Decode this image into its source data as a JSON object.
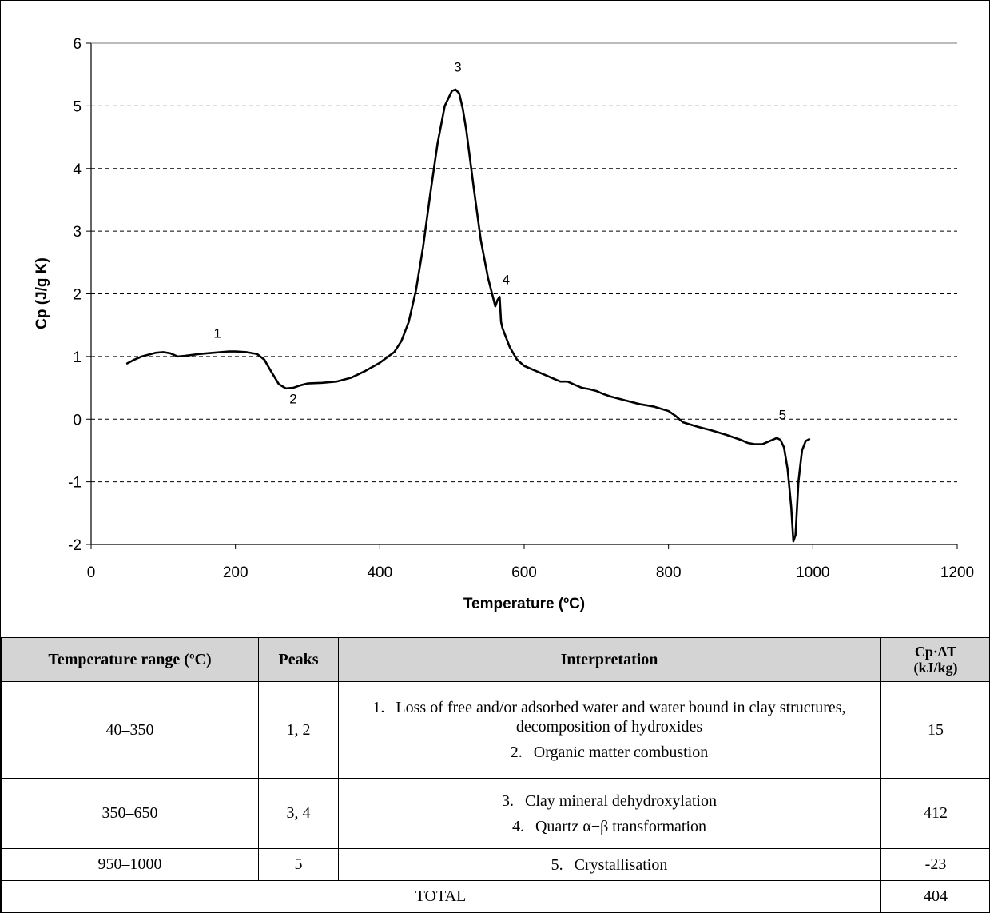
{
  "chart_data": {
    "type": "line",
    "xlabel": "Temperature (ºC)",
    "ylabel": "Cp (J/g K)",
    "xlim": [
      0,
      1200
    ],
    "ylim": [
      -2,
      6
    ],
    "xticks": [
      "0",
      "200",
      "400",
      "600",
      "800",
      "1000",
      "1200"
    ],
    "yticks": [
      "6",
      "5",
      "4",
      "3",
      "2",
      "1",
      "0",
      "-1",
      "-2"
    ],
    "grid": "horizontal dashed",
    "series": [
      {
        "x": [
          50,
          60,
          70,
          80,
          90,
          100,
          110,
          120,
          130,
          150,
          170,
          190,
          200,
          215,
          230,
          240,
          250,
          260,
          270,
          280,
          290,
          300,
          320,
          340,
          360,
          380,
          400,
          420,
          430,
          440,
          450,
          460,
          470,
          480,
          490,
          500,
          505,
          510,
          515,
          520,
          530,
          540,
          550,
          560,
          563,
          566,
          568,
          570,
          580,
          590,
          600,
          620,
          640,
          650,
          660,
          670,
          680,
          690,
          700,
          710,
          720,
          740,
          760,
          780,
          800,
          810,
          820,
          840,
          860,
          880,
          900,
          910,
          920,
          930,
          940,
          950,
          955,
          960,
          965,
          970,
          973,
          976,
          980,
          985,
          990,
          995
        ],
        "y": [
          0.89,
          0.95,
          1.0,
          1.03,
          1.06,
          1.07,
          1.05,
          1.0,
          1.01,
          1.04,
          1.06,
          1.08,
          1.08,
          1.07,
          1.04,
          0.95,
          0.75,
          0.56,
          0.49,
          0.5,
          0.54,
          0.57,
          0.58,
          0.6,
          0.66,
          0.77,
          0.9,
          1.07,
          1.25,
          1.55,
          2.05,
          2.75,
          3.6,
          4.4,
          5.0,
          5.24,
          5.26,
          5.2,
          4.95,
          4.6,
          3.7,
          2.85,
          2.25,
          1.8,
          1.9,
          1.95,
          1.55,
          1.45,
          1.15,
          0.95,
          0.85,
          0.75,
          0.65,
          0.6,
          0.6,
          0.55,
          0.5,
          0.48,
          0.45,
          0.4,
          0.36,
          0.3,
          0.24,
          0.2,
          0.13,
          0.05,
          -0.05,
          -0.12,
          -0.18,
          -0.25,
          -0.33,
          -0.38,
          -0.4,
          -0.4,
          -0.35,
          -0.3,
          -0.33,
          -0.45,
          -0.8,
          -1.4,
          -1.95,
          -1.85,
          -1.0,
          -0.5,
          -0.35,
          -0.32
        ]
      }
    ],
    "annotations": [
      {
        "text": "1",
        "x": 175,
        "y": 1.3
      },
      {
        "text": "2",
        "x": 280,
        "y": 0.25
      },
      {
        "text": "3",
        "x": 508,
        "y": 5.55
      },
      {
        "text": "4",
        "x": 575,
        "y": 2.15
      },
      {
        "text": "5",
        "x": 958,
        "y": 0.0
      }
    ]
  },
  "table": {
    "headers": {
      "temperature": "Temperature range (ºC)",
      "peaks": "Peaks",
      "interpretation": "Interpretation",
      "cp_line1": "Cp·ΔT",
      "cp_line2": "(kJ/kg)"
    },
    "rows": [
      {
        "temperature": "40–350",
        "peaks": "1, 2",
        "items": [
          {
            "num": "1.",
            "text": "Loss of free and/or adsorbed water and water bound in clay structures, decomposition of hydroxides"
          },
          {
            "num": "2.",
            "text": "Organic matter combustion"
          }
        ],
        "cp": "15"
      },
      {
        "temperature": "350–650",
        "peaks": "3, 4",
        "items": [
          {
            "num": "3.",
            "text": "Clay mineral dehydroxylation"
          },
          {
            "num": "4.",
            "text": "Quartz α−β transformation"
          }
        ],
        "cp": "412"
      },
      {
        "temperature": "950–1000",
        "peaks": "5",
        "items": [
          {
            "num": "5.",
            "text": "Crystallisation"
          }
        ],
        "cp": "-23"
      }
    ],
    "total_label": "TOTAL",
    "total_value": "404"
  }
}
